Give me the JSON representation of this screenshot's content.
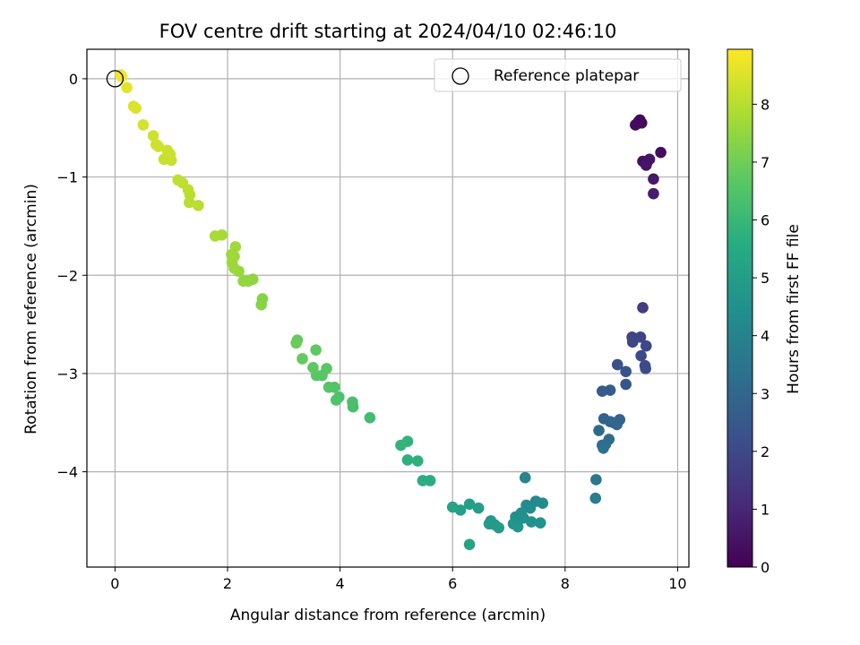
{
  "chart_data": {
    "type": "scatter",
    "title": "FOV centre drift starting at 2024/04/10 02:46:10",
    "xlabel": "Angular distance from reference (arcmin)",
    "ylabel": "Rotation from reference (arcmin)",
    "xlim": [
      -0.5,
      10.2
    ],
    "ylim": [
      -4.97,
      0.3
    ],
    "xticks": [
      0,
      2,
      4,
      6,
      8,
      10
    ],
    "xtick_labels": [
      "0",
      "2",
      "4",
      "6",
      "8",
      "10"
    ],
    "yticks": [
      0,
      -1,
      -2,
      -3,
      -4
    ],
    "ytick_labels": [
      "0",
      "−1",
      "−2",
      "−3",
      "−4"
    ],
    "grid": true,
    "legend": {
      "position": "top-right",
      "entries": [
        "Reference platepar"
      ]
    },
    "colorbar": {
      "label": "Hours from first FF file",
      "range": [
        0,
        8.95
      ],
      "ticks": [
        0,
        1,
        2,
        3,
        4,
        5,
        6,
        7,
        8
      ],
      "tick_labels": [
        "0",
        "1",
        "2",
        "3",
        "4",
        "5",
        "6",
        "7",
        "8"
      ],
      "colormap": "viridis"
    },
    "reference_point": {
      "x": 0,
      "y": 0
    },
    "points": [
      {
        "x": 9.3,
        "y": -0.44,
        "c": 0.1
      },
      {
        "x": 9.33,
        "y": -0.42,
        "c": 0.15
      },
      {
        "x": 9.36,
        "y": -0.45,
        "c": 0.2
      },
      {
        "x": 9.25,
        "y": -0.47,
        "c": 0.25
      },
      {
        "x": 9.7,
        "y": -0.75,
        "c": 0.3
      },
      {
        "x": 9.38,
        "y": -0.84,
        "c": 0.4
      },
      {
        "x": 9.45,
        "y": -0.86,
        "c": 0.45
      },
      {
        "x": 9.5,
        "y": -0.82,
        "c": 0.5
      },
      {
        "x": 9.44,
        "y": -0.88,
        "c": 0.55
      },
      {
        "x": 9.57,
        "y": -1.02,
        "c": 0.6
      },
      {
        "x": 9.57,
        "y": -1.17,
        "c": 0.7
      },
      {
        "x": 9.38,
        "y": -2.33,
        "c": 1.6
      },
      {
        "x": 9.19,
        "y": -2.63,
        "c": 1.8
      },
      {
        "x": 9.34,
        "y": -2.63,
        "c": 1.85
      },
      {
        "x": 9.2,
        "y": -2.68,
        "c": 1.9
      },
      {
        "x": 9.44,
        "y": -2.72,
        "c": 1.95
      },
      {
        "x": 9.35,
        "y": -2.82,
        "c": 2.0
      },
      {
        "x": 9.42,
        "y": -2.92,
        "c": 2.05
      },
      {
        "x": 9.43,
        "y": -2.95,
        "c": 2.1
      },
      {
        "x": 8.93,
        "y": -2.91,
        "c": 2.2
      },
      {
        "x": 9.08,
        "y": -2.98,
        "c": 2.3
      },
      {
        "x": 9.08,
        "y": -3.11,
        "c": 2.4
      },
      {
        "x": 8.66,
        "y": -3.18,
        "c": 2.6
      },
      {
        "x": 8.8,
        "y": -3.17,
        "c": 2.65
      },
      {
        "x": 8.69,
        "y": -3.46,
        "c": 2.8
      },
      {
        "x": 8.8,
        "y": -3.49,
        "c": 2.85
      },
      {
        "x": 8.97,
        "y": -3.47,
        "c": 2.9
      },
      {
        "x": 8.92,
        "y": -3.52,
        "c": 2.95
      },
      {
        "x": 8.86,
        "y": -3.5,
        "c": 3.0
      },
      {
        "x": 8.6,
        "y": -3.58,
        "c": 3.1
      },
      {
        "x": 8.78,
        "y": -3.67,
        "c": 3.2
      },
      {
        "x": 8.72,
        "y": -3.72,
        "c": 3.25
      },
      {
        "x": 8.66,
        "y": -3.73,
        "c": 3.3
      },
      {
        "x": 8.68,
        "y": -3.76,
        "c": 3.35
      },
      {
        "x": 8.55,
        "y": -4.08,
        "c": 3.6
      },
      {
        "x": 8.54,
        "y": -4.27,
        "c": 3.8
      },
      {
        "x": 7.29,
        "y": -4.06,
        "c": 4.1
      },
      {
        "x": 7.48,
        "y": -4.3,
        "c": 4.2
      },
      {
        "x": 7.6,
        "y": -4.32,
        "c": 4.25
      },
      {
        "x": 7.31,
        "y": -4.34,
        "c": 4.3
      },
      {
        "x": 7.38,
        "y": -4.37,
        "c": 4.35
      },
      {
        "x": 7.22,
        "y": -4.42,
        "c": 4.4
      },
      {
        "x": 7.12,
        "y": -4.46,
        "c": 4.45
      },
      {
        "x": 7.26,
        "y": -4.47,
        "c": 4.5
      },
      {
        "x": 7.4,
        "y": -4.51,
        "c": 4.55
      },
      {
        "x": 7.56,
        "y": -4.52,
        "c": 4.6
      },
      {
        "x": 7.08,
        "y": -4.53,
        "c": 4.65
      },
      {
        "x": 7.16,
        "y": -4.56,
        "c": 4.7
      },
      {
        "x": 6.68,
        "y": -4.5,
        "c": 4.8
      },
      {
        "x": 6.75,
        "y": -4.54,
        "c": 4.85
      },
      {
        "x": 6.65,
        "y": -4.53,
        "c": 4.9
      },
      {
        "x": 6.82,
        "y": -4.57,
        "c": 4.95
      },
      {
        "x": 6.46,
        "y": -4.37,
        "c": 5.0
      },
      {
        "x": 6.3,
        "y": -4.33,
        "c": 5.05
      },
      {
        "x": 6.14,
        "y": -4.39,
        "c": 5.1
      },
      {
        "x": 6.0,
        "y": -4.36,
        "c": 5.15
      },
      {
        "x": 6.3,
        "y": -4.74,
        "c": 5.2
      },
      {
        "x": 5.6,
        "y": -4.09,
        "c": 5.6
      },
      {
        "x": 5.47,
        "y": -4.09,
        "c": 5.65
      },
      {
        "x": 5.38,
        "y": -3.89,
        "c": 5.7
      },
      {
        "x": 5.2,
        "y": -3.88,
        "c": 5.75
      },
      {
        "x": 5.2,
        "y": -3.69,
        "c": 5.8
      },
      {
        "x": 5.08,
        "y": -3.73,
        "c": 5.85
      },
      {
        "x": 4.53,
        "y": -3.45,
        "c": 6.2
      },
      {
        "x": 4.23,
        "y": -3.34,
        "c": 6.3
      },
      {
        "x": 4.22,
        "y": -3.29,
        "c": 6.35
      },
      {
        "x": 3.98,
        "y": -3.24,
        "c": 6.4
      },
      {
        "x": 3.93,
        "y": -3.27,
        "c": 6.45
      },
      {
        "x": 3.9,
        "y": -3.14,
        "c": 6.5
      },
      {
        "x": 3.8,
        "y": -3.14,
        "c": 6.55
      },
      {
        "x": 3.68,
        "y": -3.02,
        "c": 6.6
      },
      {
        "x": 3.58,
        "y": -3.02,
        "c": 6.62
      },
      {
        "x": 3.76,
        "y": -2.95,
        "c": 6.65
      },
      {
        "x": 3.52,
        "y": -2.94,
        "c": 6.7
      },
      {
        "x": 3.57,
        "y": -2.76,
        "c": 6.75
      },
      {
        "x": 3.33,
        "y": -2.85,
        "c": 6.8
      },
      {
        "x": 3.24,
        "y": -2.66,
        "c": 6.85
      },
      {
        "x": 3.22,
        "y": -2.69,
        "c": 6.9
      },
      {
        "x": 2.62,
        "y": -2.24,
        "c": 7.3
      },
      {
        "x": 2.6,
        "y": -2.3,
        "c": 7.35
      },
      {
        "x": 2.45,
        "y": -2.04,
        "c": 7.45
      },
      {
        "x": 2.37,
        "y": -2.06,
        "c": 7.5
      },
      {
        "x": 2.28,
        "y": -2.06,
        "c": 7.52
      },
      {
        "x": 2.2,
        "y": -1.96,
        "c": 7.55
      },
      {
        "x": 2.12,
        "y": -1.93,
        "c": 7.6
      },
      {
        "x": 2.08,
        "y": -1.87,
        "c": 7.62
      },
      {
        "x": 2.12,
        "y": -1.81,
        "c": 7.65
      },
      {
        "x": 2.07,
        "y": -1.79,
        "c": 7.68
      },
      {
        "x": 2.14,
        "y": -1.71,
        "c": 7.7
      },
      {
        "x": 1.9,
        "y": -1.59,
        "c": 7.75
      },
      {
        "x": 1.78,
        "y": -1.6,
        "c": 7.8
      },
      {
        "x": 1.48,
        "y": -1.29,
        "c": 8.0
      },
      {
        "x": 1.32,
        "y": -1.26,
        "c": 8.02
      },
      {
        "x": 1.33,
        "y": -1.18,
        "c": 8.05
      },
      {
        "x": 1.3,
        "y": -1.13,
        "c": 8.08
      },
      {
        "x": 1.2,
        "y": -1.06,
        "c": 8.1
      },
      {
        "x": 1.12,
        "y": -1.03,
        "c": 8.12
      },
      {
        "x": 1.0,
        "y": -0.83,
        "c": 8.2
      },
      {
        "x": 0.87,
        "y": -0.82,
        "c": 8.22
      },
      {
        "x": 0.98,
        "y": -0.77,
        "c": 8.25
      },
      {
        "x": 0.93,
        "y": -0.73,
        "c": 8.28
      },
      {
        "x": 0.77,
        "y": -0.69,
        "c": 8.3
      },
      {
        "x": 0.73,
        "y": -0.67,
        "c": 8.32
      },
      {
        "x": 0.68,
        "y": -0.58,
        "c": 8.35
      },
      {
        "x": 0.5,
        "y": -0.47,
        "c": 8.4
      },
      {
        "x": 0.37,
        "y": -0.3,
        "c": 8.5
      },
      {
        "x": 0.33,
        "y": -0.28,
        "c": 8.52
      },
      {
        "x": 0.21,
        "y": -0.09,
        "c": 8.6
      },
      {
        "x": 0.1,
        "y": 0.04,
        "c": 8.7
      },
      {
        "x": 0.12,
        "y": 0.02,
        "c": 8.8
      }
    ]
  }
}
